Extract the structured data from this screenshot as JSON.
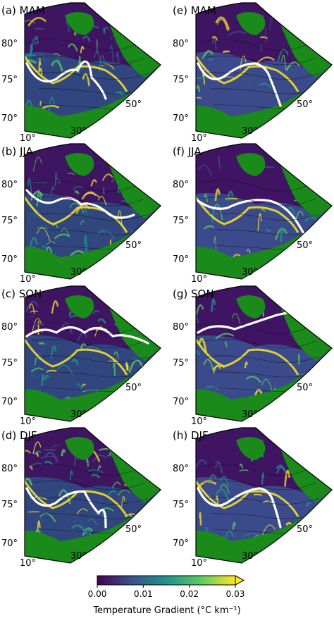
{
  "panels": [
    {
      "id": "a",
      "label": "(a) MAM",
      "group": "left"
    },
    {
      "id": "b",
      "label": "(b) JJA",
      "group": "left"
    },
    {
      "id": "c",
      "label": "(c) SON",
      "group": "left"
    },
    {
      "id": "d",
      "label": "(d) DJF",
      "group": "left"
    },
    {
      "id": "e",
      "label": "(e) MAM",
      "group": "right"
    },
    {
      "id": "f",
      "label": "(f) JJA",
      "group": "right"
    },
    {
      "id": "g",
      "label": "(g) SON",
      "group": "right"
    },
    {
      "id": "h",
      "label": "(h) DJF",
      "group": "right"
    }
  ],
  "lat_labels": [
    "80°",
    "75°",
    "70°"
  ],
  "lon_labels": [
    "10°",
    "30°",
    "50°"
  ],
  "colorbar": {
    "ticks": [
      "0.00",
      "0.01",
      "0.02",
      "0.03"
    ],
    "range": [
      0,
      0.03
    ],
    "extend": "max",
    "label": "Temperature Gradient (°C km⁻¹)",
    "colormap": [
      "#440154",
      "#3b528b",
      "#21918c",
      "#5ec962",
      "#fde725"
    ]
  },
  "colors": {
    "land": "#1a8a1a",
    "ice_edge": "#ffffff",
    "ocean_low": "#3a1f66",
    "ocean_high": "#fde725"
  }
}
